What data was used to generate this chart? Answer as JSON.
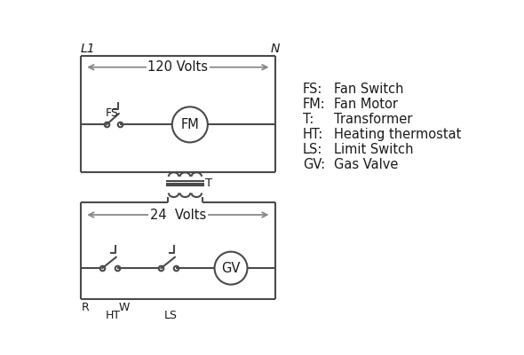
{
  "bg_color": "#ffffff",
  "line_color": "#4a4a4a",
  "arrow_color": "#888888",
  "text_color": "#1a1a1a",
  "legend": [
    [
      "FS:",
      "Fan Switch"
    ],
    [
      "FM:",
      "Fan Motor"
    ],
    [
      "T:",
      "Transformer"
    ],
    [
      "HT:",
      "Heating thermostat"
    ],
    [
      "LS:",
      "Limit Switch"
    ],
    [
      "GV:",
      "Gas Valve"
    ]
  ],
  "label_L1": "L1",
  "label_N": "N",
  "label_120V": "120 Volts",
  "label_24V": "24  Volts",
  "label_T": "T",
  "label_R": "R",
  "label_W": "W",
  "label_HT": "HT",
  "label_LS": "LS",
  "label_FS": "FS",
  "label_FM": "FM",
  "label_GV": "GV"
}
